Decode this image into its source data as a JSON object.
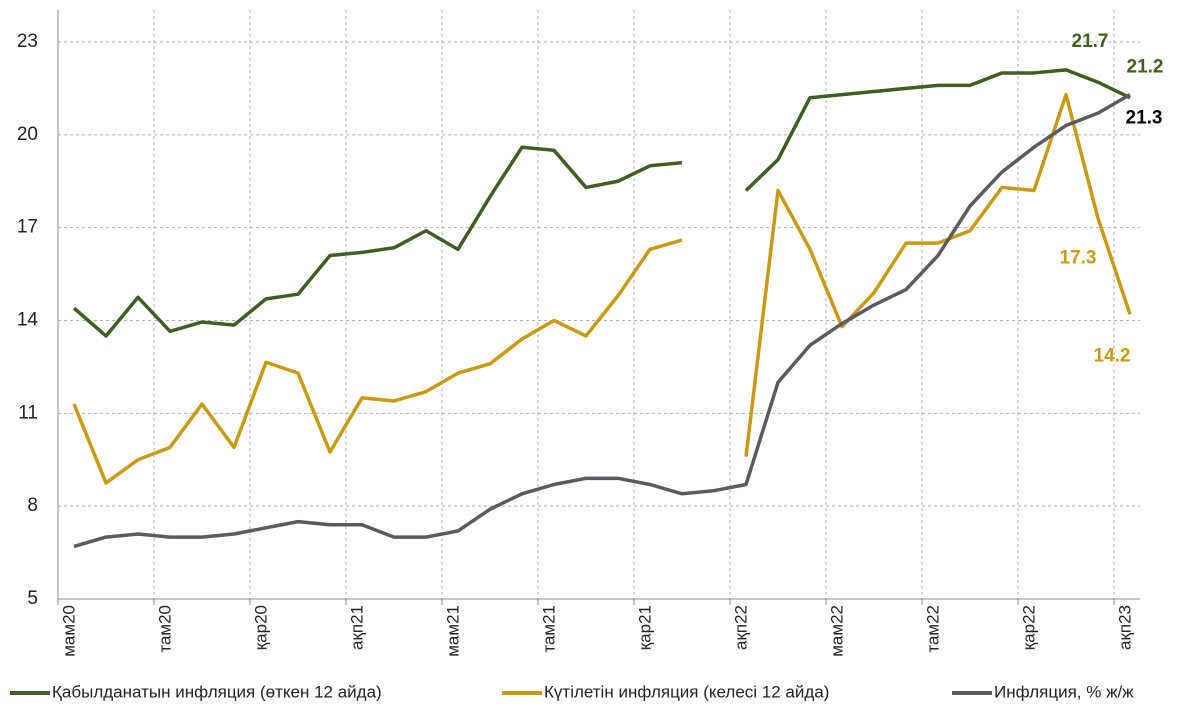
{
  "chart_data": {
    "type": "line",
    "categories": [
      "мам20",
      null,
      null,
      "там20",
      null,
      null,
      "қар20",
      null,
      null,
      "ақп21",
      null,
      null,
      "мам21",
      null,
      null,
      "там21",
      null,
      null,
      "қар21",
      null,
      null,
      "ақп22",
      null,
      null,
      "мам22",
      null,
      null,
      "там22",
      null,
      null,
      "қар22",
      null,
      null,
      "ақп23"
    ],
    "series": [
      {
        "name": "Қабылданатын инфляция (өткен 12 айда)",
        "color": "#3d5f24",
        "labeled_points": [
          32,
          33
        ],
        "values": [
          14.4,
          13.5,
          14.75,
          13.65,
          13.95,
          13.85,
          14.7,
          14.85,
          16.1,
          16.2,
          16.35,
          16.9,
          16.3,
          18.0,
          19.6,
          19.5,
          18.3,
          18.5,
          19.0,
          19.1,
          null,
          18.2,
          19.2,
          21.2,
          21.3,
          21.4,
          21.5,
          21.6,
          21.6,
          22.0,
          22.0,
          22.1,
          21.7,
          21.2
        ]
      },
      {
        "name": "Күтілетін инфляция (келесі 12 айда)",
        "color": "#c79a12",
        "labeled_points": [
          32,
          33
        ],
        "values": [
          11.3,
          8.75,
          9.5,
          9.9,
          11.3,
          9.9,
          12.65,
          12.3,
          9.75,
          11.5,
          11.4,
          11.7,
          12.3,
          12.6,
          13.4,
          14.0,
          13.5,
          14.8,
          16.3,
          16.6,
          null,
          9.6,
          18.2,
          16.3,
          13.8,
          14.9,
          16.5,
          16.5,
          16.9,
          18.3,
          18.2,
          21.3,
          17.3,
          14.2
        ]
      },
      {
        "name": "Инфляция, % ж/ж",
        "color": "#5a5a60",
        "labeled_points": [
          33
        ],
        "values": [
          6.7,
          7.0,
          7.1,
          7.0,
          7.0,
          7.1,
          7.3,
          7.5,
          7.4,
          7.4,
          7.0,
          7.0,
          7.2,
          7.9,
          8.4,
          8.7,
          8.9,
          8.9,
          8.7,
          8.4,
          8.5,
          8.7,
          12.0,
          13.2,
          13.9,
          14.5,
          15.0,
          16.1,
          17.7,
          18.8,
          19.6,
          20.3,
          20.7,
          21.3
        ]
      }
    ],
    "ylim": [
      5,
      23
    ],
    "yticks": [
      5,
      8,
      11,
      14,
      17,
      20,
      23
    ],
    "grid": true
  }
}
